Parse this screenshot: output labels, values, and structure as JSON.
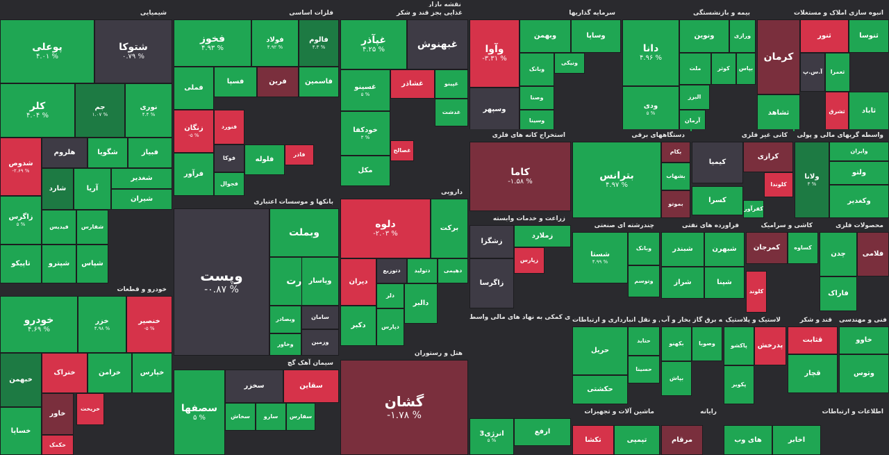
{
  "app_title": "نقشه بازار",
  "colors": {
    "green": "#1fa653",
    "green_dark": "#1d7a43",
    "green_light": "#2dbf62",
    "red": "#d6334a",
    "maroon": "#7a2f3d",
    "gray": "#3e3b45"
  },
  "sectors": [
    {
      "id": "chem",
      "title": "شیمیایی",
      "tiles": [
        {
          "name": "پوعلی",
          "pct": "۴.۰۱ %",
          "color": "green"
        },
        {
          "name": "شتوکا",
          "pct": "۰.۷۹ %",
          "color": "gray"
        },
        {
          "name": "کلر",
          "pct": "۴.۰۴ %",
          "color": "green"
        },
        {
          "name": "جم",
          "pct": "۱.۰۷ %",
          "color": "green_dark"
        },
        {
          "name": "نوری",
          "pct": "۴.۴ %",
          "color": "green"
        },
        {
          "name": "شدوص",
          "pct": "-۲.۶۹ %",
          "color": "red"
        },
        {
          "name": "هلروم",
          "pct": "",
          "color": "gray"
        },
        {
          "name": "شگویا",
          "pct": "",
          "color": "green"
        },
        {
          "name": "فبیاز",
          "pct": "",
          "color": "green"
        },
        {
          "name": "زاگرس",
          "pct": "۵ %",
          "color": "green"
        },
        {
          "name": "شارد",
          "pct": "",
          "color": "green_dark"
        },
        {
          "name": "آریا",
          "pct": "",
          "color": "green"
        },
        {
          "name": "شغدیر",
          "pct": "",
          "color": "green"
        },
        {
          "name": "شیران",
          "pct": "",
          "color": "green"
        },
        {
          "name": "فیدیس",
          "pct": "",
          "color": "green"
        },
        {
          "name": "شفارس",
          "pct": "",
          "color": "green"
        },
        {
          "name": "تاپیکو",
          "pct": "",
          "color": "green"
        },
        {
          "name": "شپترو",
          "pct": "",
          "color": "green"
        },
        {
          "name": "شپاس",
          "pct": "",
          "color": "green"
        }
      ]
    },
    {
      "id": "metals",
      "title": "فلزات اساسی",
      "tiles": [
        {
          "name": "فخوز",
          "pct": "۴.۹۳ %",
          "color": "green"
        },
        {
          "name": "فولاد",
          "pct": "۴.۹۲ %",
          "color": "green"
        },
        {
          "name": "فالوم",
          "pct": "۴.۳ %",
          "color": "green_dark"
        },
        {
          "name": "فملی",
          "pct": "",
          "color": "green"
        },
        {
          "name": "فسپا",
          "pct": "",
          "color": "green"
        },
        {
          "name": "فرین",
          "pct": "",
          "color": "maroon"
        },
        {
          "name": "فاسمین",
          "pct": "",
          "color": "green"
        },
        {
          "name": "زنگان",
          "pct": "-۵ %",
          "color": "red"
        },
        {
          "name": "فنورد",
          "pct": "",
          "color": "red"
        },
        {
          "name": "فوکا",
          "pct": "",
          "color": "gray"
        },
        {
          "name": "فلوله",
          "pct": "",
          "color": "green"
        },
        {
          "name": "فرآور",
          "pct": "",
          "color": "green"
        },
        {
          "name": "فجوال",
          "pct": "",
          "color": "green"
        },
        {
          "name": "فاذر",
          "pct": "",
          "color": "red"
        }
      ]
    },
    {
      "id": "food",
      "title": "غذایی بجز قند و شکر",
      "tiles": [
        {
          "name": "غپآذر",
          "pct": "۴.۲۵ %",
          "color": "green"
        },
        {
          "name": "غبهنوش",
          "pct": "",
          "color": "gray"
        },
        {
          "name": "غسینو",
          "pct": "۵ %",
          "color": "green"
        },
        {
          "name": "غشاذر",
          "pct": "",
          "color": "red"
        },
        {
          "name": "غپینو",
          "pct": "",
          "color": "green"
        },
        {
          "name": "خودکفا",
          "pct": "۳ %",
          "color": "green"
        },
        {
          "name": "غدشت",
          "pct": "",
          "color": "green"
        },
        {
          "name": "غصالح",
          "pct": "",
          "color": "red"
        },
        {
          "name": "مکل",
          "pct": "",
          "color": "green"
        }
      ]
    },
    {
      "id": "invest",
      "title": "سرمایه گذاریها",
      "tiles": [
        {
          "name": "وآوا",
          "pct": "-۳.۳۱ %",
          "color": "red"
        },
        {
          "name": "وبهمن",
          "pct": "",
          "color": "green"
        },
        {
          "name": "وساپا",
          "pct": "",
          "color": "green"
        },
        {
          "name": "وسپهر",
          "pct": "",
          "color": "gray"
        },
        {
          "name": "وبانک",
          "pct": "",
          "color": "green"
        },
        {
          "name": "ونیکی",
          "pct": "",
          "color": "green"
        },
        {
          "name": "وصنا",
          "pct": "",
          "color": "green"
        },
        {
          "name": "وسینا",
          "pct": "",
          "color": "green"
        }
      ]
    },
    {
      "id": "insur",
      "title": "بیمه و بازنشستگی",
      "tiles": [
        {
          "name": "دانا",
          "pct": "۴.۹۶ %",
          "color": "green"
        },
        {
          "name": "ونوین",
          "pct": "",
          "color": "green"
        },
        {
          "name": "ورازی",
          "pct": "",
          "color": "green"
        },
        {
          "name": "ملت",
          "pct": "",
          "color": "green"
        },
        {
          "name": "کوثر",
          "pct": "",
          "color": "green"
        },
        {
          "name": "بپاس",
          "pct": "",
          "color": "green"
        },
        {
          "name": "ودی",
          "pct": "۵ %",
          "color": "green"
        },
        {
          "name": "البرز",
          "pct": "",
          "color": "green"
        },
        {
          "name": "آرمان",
          "pct": "",
          "color": "green"
        }
      ]
    },
    {
      "id": "realestate",
      "title": "انبوه سازی املاک و مستغلات",
      "tiles": [
        {
          "name": "کرمان",
          "pct": "",
          "color": "maroon"
        },
        {
          "name": "ثنور",
          "pct": "",
          "color": "red"
        },
        {
          "name": "ثنوسا",
          "pct": "",
          "color": "green"
        },
        {
          "name": "آ.س.پ",
          "pct": "",
          "color": "gray"
        },
        {
          "name": "ثعمرا",
          "pct": "",
          "color": "green"
        },
        {
          "name": "ثشاهد",
          "pct": "",
          "color": "green"
        },
        {
          "name": "ثاباد",
          "pct": "",
          "color": "green"
        },
        {
          "name": "ثشرق",
          "pct": "",
          "color": "red"
        }
      ]
    },
    {
      "id": "tech",
      "title": "استخراج کانه های فلزی",
      "tiles": [
        {
          "name": "کاما",
          "pct": "-۱.۵۸ %",
          "color": "maroon"
        }
      ]
    },
    {
      "id": "elec",
      "title": "دستگاههای برقی",
      "tiles": [
        {
          "name": "بترانس",
          "pct": "۴.۹۷ %",
          "color": "green"
        },
        {
          "name": "بکام",
          "pct": "",
          "color": "maroon"
        },
        {
          "name": "بشهاب",
          "pct": "",
          "color": "green"
        },
        {
          "name": "بموتو",
          "pct": "",
          "color": "maroon"
        }
      ]
    },
    {
      "id": "nonmetal",
      "title": "کانی غیر فلزی",
      "tiles": [
        {
          "name": "کیمیا",
          "pct": "",
          "color": "gray"
        },
        {
          "name": "کرازی",
          "pct": "",
          "color": "maroon"
        },
        {
          "name": "کسرا",
          "pct": "",
          "color": "green"
        },
        {
          "name": "کفرآور",
          "pct": "",
          "color": "green"
        },
        {
          "name": "کلوندا",
          "pct": "",
          "color": "red"
        }
      ]
    },
    {
      "id": "bank2",
      "title": "واسطه گریهای مالی و پولی",
      "tiles": [
        {
          "name": "ولانا",
          "pct": "۳ %",
          "color": "green_dark"
        },
        {
          "name": "وایران",
          "pct": "",
          "color": "green"
        },
        {
          "name": "ولتو",
          "pct": "",
          "color": "green"
        },
        {
          "name": "وکغدیر",
          "pct": "",
          "color": "green"
        }
      ]
    },
    {
      "id": "pharma",
      "title": "دارویی",
      "tiles": [
        {
          "name": "دلوه",
          "pct": "-۲.۰۳ %",
          "color": "red"
        },
        {
          "name": "برکت",
          "pct": "",
          "color": "green"
        },
        {
          "name": "دیران",
          "pct": "",
          "color": "red"
        },
        {
          "name": "دتوزیع",
          "pct": "",
          "color": "gray"
        },
        {
          "name": "دتولید",
          "pct": "",
          "color": "green"
        },
        {
          "name": "دهیمی",
          "pct": "",
          "color": "green"
        },
        {
          "name": "دلر",
          "pct": "",
          "color": "green"
        },
        {
          "name": "دپارس",
          "pct": "",
          "color": "green"
        },
        {
          "name": "دکبر",
          "pct": "",
          "color": "green"
        },
        {
          "name": "دالبر",
          "pct": "",
          "color": "green"
        }
      ]
    },
    {
      "id": "bank",
      "title": "بانکها و موسسات اعتباری",
      "tiles": [
        {
          "name": "وپست",
          "pct": "-۰.۸۷ %",
          "color": "gray"
        },
        {
          "name": "وبملت",
          "pct": "",
          "color": "green"
        },
        {
          "name": "وتجارت",
          "pct": "",
          "color": "green"
        },
        {
          "name": "وبصادر",
          "pct": "",
          "color": "green"
        },
        {
          "name": "وپاسار",
          "pct": "",
          "color": "green"
        },
        {
          "name": "سامان",
          "pct": "",
          "color": "gray"
        },
        {
          "name": "وخاور",
          "pct": "",
          "color": "green"
        },
        {
          "name": "وزمین",
          "pct": "",
          "color": "gray"
        }
      ]
    },
    {
      "id": "auto",
      "title": "خودرو و قطعات",
      "tiles": [
        {
          "name": "خودرو",
          "pct": "۴.۶۹ %",
          "color": "green"
        },
        {
          "name": "خزر",
          "pct": "۴.۹۸ %",
          "color": "green"
        },
        {
          "name": "خنصیر",
          "pct": "-۵ %",
          "color": "red"
        },
        {
          "name": "خبهمن",
          "pct": "",
          "color": "green_dark"
        },
        {
          "name": "ختراک",
          "pct": "",
          "color": "red"
        },
        {
          "name": "خرامن",
          "pct": "",
          "color": "green"
        },
        {
          "name": "خپارس",
          "pct": "",
          "color": "green"
        },
        {
          "name": "خریخت",
          "pct": "",
          "color": "red"
        },
        {
          "name": "خاور",
          "pct": "",
          "color": "maroon"
        },
        {
          "name": "خساپا",
          "pct": "",
          "color": "green"
        },
        {
          "name": "خکمک",
          "pct": "",
          "color": "red"
        }
      ]
    },
    {
      "id": "cement",
      "title": "سیمان آهک گچ",
      "tiles": [
        {
          "name": "سصفها",
          "pct": "۵ %",
          "color": "green"
        },
        {
          "name": "سخزر",
          "pct": "",
          "color": "gray"
        },
        {
          "name": "سقاین",
          "pct": "",
          "color": "red"
        },
        {
          "name": "سخاش",
          "pct": "",
          "color": "green"
        },
        {
          "name": "سارو",
          "pct": "",
          "color": "green"
        },
        {
          "name": "سفارس",
          "pct": "",
          "color": "green"
        }
      ]
    },
    {
      "id": "hotel",
      "title": "هتل و رستوران",
      "tiles": [
        {
          "name": "گشان",
          "pct": "-۱.۷۸ %",
          "color": "maroon"
        }
      ]
    },
    {
      "id": "agri",
      "title": "زراعت و خدمات وابسته",
      "tiles": [
        {
          "name": "زشگزا",
          "pct": "",
          "color": "gray"
        },
        {
          "name": "زملارد",
          "pct": "",
          "color": "green"
        },
        {
          "name": "زاگرسا",
          "pct": "",
          "color": "gray"
        },
        {
          "name": "زپارس",
          "pct": "",
          "color": "red"
        }
      ]
    },
    {
      "id": "engine",
      "title": "چندرشته ای صنعتی",
      "tiles": [
        {
          "name": "شستا",
          "pct": "۴.۹۹ %",
          "color": "green"
        },
        {
          "name": "وبانک",
          "pct": "",
          "color": "green"
        },
        {
          "name": "وتوسم",
          "pct": "",
          "color": "green"
        }
      ]
    },
    {
      "id": "oil",
      "title": "فراورده های نفتی",
      "tiles": [
        {
          "name": "شبندر",
          "pct": "",
          "color": "green"
        },
        {
          "name": "شبهرن",
          "pct": "",
          "color": "green"
        },
        {
          "name": "شراز",
          "pct": "",
          "color": "green"
        },
        {
          "name": "شپنا",
          "pct": "",
          "color": "green"
        }
      ]
    },
    {
      "id": "ceramic",
      "title": "کاشی و سرامیک",
      "tiles": [
        {
          "name": "کمرجان",
          "pct": "",
          "color": "maroon"
        },
        {
          "name": "کساوه",
          "pct": "",
          "color": "green"
        },
        {
          "name": "کلوند",
          "pct": "",
          "color": "red"
        }
      ]
    },
    {
      "id": "woods",
      "title": "محصولات فلزی",
      "tiles": [
        {
          "name": "چدن",
          "pct": "",
          "color": "green"
        },
        {
          "name": "فلامی",
          "pct": "",
          "color": "maroon"
        },
        {
          "name": "فاراک",
          "pct": "",
          "color": "green"
        }
      ]
    },
    {
      "id": "trans",
      "title": "حمل و نقل انبارداری و ارتباطات",
      "tiles": [
        {
          "name": "حریل",
          "pct": "",
          "color": "green"
        },
        {
          "name": "حکشتی",
          "pct": "",
          "color": "green"
        },
        {
          "name": "حتاید",
          "pct": "",
          "color": "green"
        },
        {
          "name": "حسینا",
          "pct": "",
          "color": "green"
        }
      ]
    },
    {
      "id": "water",
      "title": "عرضه برق گاز بخار و آب",
      "tiles": [
        {
          "name": "بکهنو",
          "pct": "",
          "color": "green"
        },
        {
          "name": "وصوبا",
          "pct": "",
          "color": "green"
        },
        {
          "name": "بپاش",
          "pct": "",
          "color": "green"
        }
      ]
    },
    {
      "id": "plastic",
      "title": "لاستیک و پلاستیک",
      "tiles": [
        {
          "name": "پاکشو",
          "pct": "",
          "color": "green"
        },
        {
          "name": "پدرخش",
          "pct": "",
          "color": "red"
        },
        {
          "name": "پکویر",
          "pct": "",
          "color": "green"
        }
      ]
    },
    {
      "id": "sugar",
      "title": "قند و شکر",
      "tiles": [
        {
          "name": "قثابت",
          "pct": "",
          "color": "red"
        },
        {
          "name": "قچار",
          "pct": "",
          "color": "green"
        }
      ]
    },
    {
      "id": "eng2",
      "title": "فنی و مهندسی",
      "tiles": [
        {
          "name": "خاوو",
          "pct": "",
          "color": "green"
        },
        {
          "name": "وتوس",
          "pct": "",
          "color": "green"
        }
      ]
    },
    {
      "id": "car2",
      "title": "فعالیتهای کمکی به نهاد های مالی واسط",
      "tiles": [
        {
          "name": "انرژی3",
          "pct": "۵ %",
          "color": "green"
        },
        {
          "name": "ارفع",
          "pct": "",
          "color": "green"
        }
      ]
    },
    {
      "id": "mach",
      "title": "ماشین آلات و تجهیزات",
      "tiles": [
        {
          "name": "تکشا",
          "pct": "",
          "color": "red"
        },
        {
          "name": "تپمپی",
          "pct": "",
          "color": "green"
        }
      ]
    },
    {
      "id": "computer",
      "title": "رایانه",
      "tiles": [
        {
          "name": "مرقام",
          "pct": "",
          "color": "maroon"
        }
      ]
    },
    {
      "id": "comm",
      "title": "اطلاعات و ارتباطات",
      "tiles": [
        {
          "name": "های وب",
          "pct": "",
          "color": "green"
        },
        {
          "name": "اخابر",
          "pct": "",
          "color": "green"
        }
      ]
    }
  ]
}
